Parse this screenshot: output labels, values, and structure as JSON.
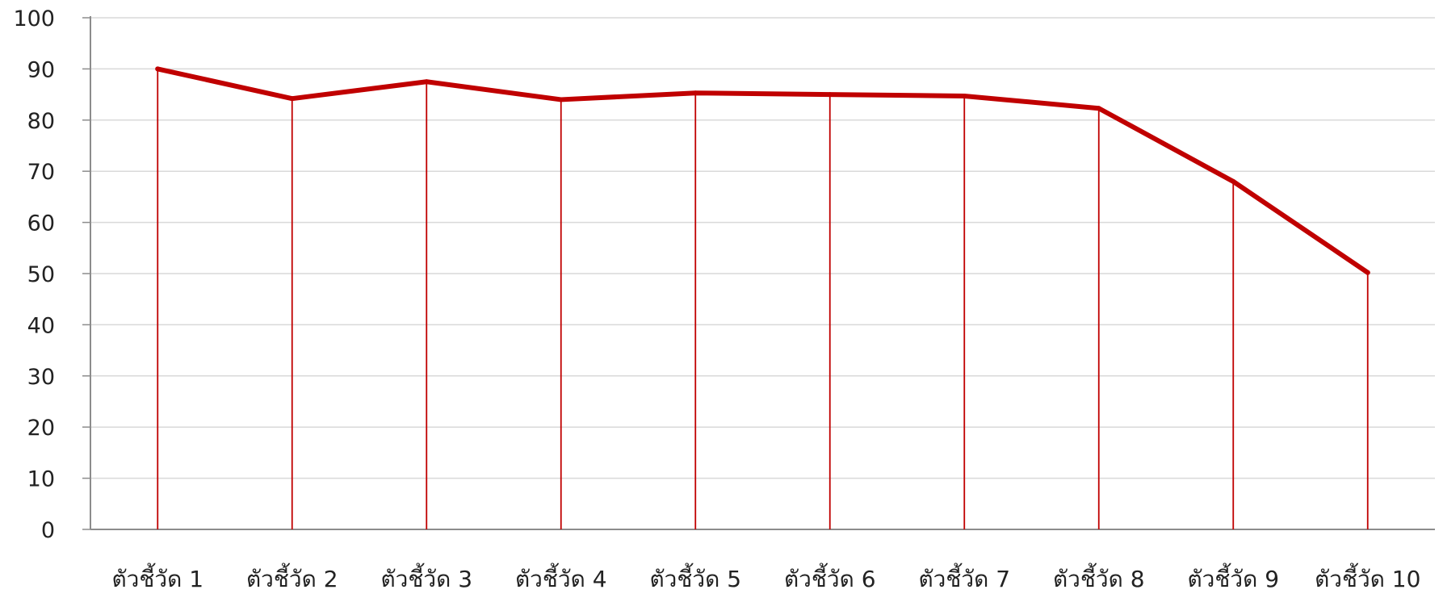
{
  "chart_data": {
    "type": "line",
    "title": "",
    "xlabel": "",
    "ylabel": "",
    "categories": [
      "ตัวชี้วัด 1",
      "ตัวชี้วัด 2",
      "ตัวชี้วัด 3",
      "ตัวชี้วัด 4",
      "ตัวชี้วัด 5",
      "ตัวชี้วัด 6",
      "ตัวชี้วัด 7",
      "ตัวชี้วัด 8",
      "ตัวชี้วัด 9",
      "ตัวชี้วัด 10"
    ],
    "values": [
      90,
      84.2,
      87.5,
      84,
      85.3,
      85,
      84.7,
      82.3,
      68,
      50.2
    ],
    "ylim": [
      0,
      100
    ],
    "yticks": [
      "0",
      "10",
      "20",
      "30",
      "40",
      "50",
      "60",
      "70",
      "80",
      "90",
      "100"
    ],
    "grid": true,
    "drop_lines": true,
    "legend": "none",
    "colors": {
      "line": "#c00000",
      "grid": "#d9d9d9",
      "axis": "#8c8c8c"
    }
  }
}
